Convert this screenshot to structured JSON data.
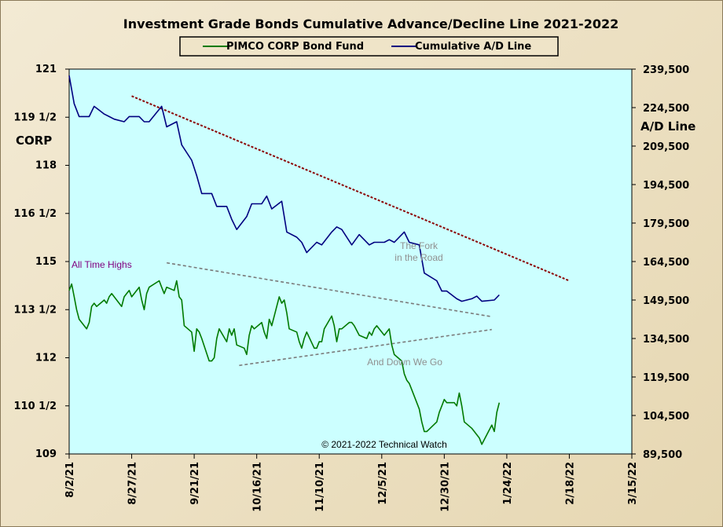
{
  "chart_data": {
    "type": "line",
    "title": "Investment Grade Bonds Cumulative Advance/Decline Line 2021-2022",
    "ylabel_left": "CORP",
    "ylabel_right": "A/D Line",
    "copyright": "© 2021-2022  Technical  Watch",
    "x_ticks": [
      "8/2/21",
      "8/27/21",
      "9/21/21",
      "10/16/21",
      "11/10/21",
      "12/5/21",
      "12/30/21",
      "1/24/22",
      "2/18/22",
      "3/15/22"
    ],
    "xlim": [
      "8/2/21",
      "3/15/22"
    ],
    "y_left_ticks": [
      "121",
      "119 1/2",
      "118",
      "116 1/2",
      "115",
      "113 1/2",
      "112",
      "110 1/2",
      "109"
    ],
    "y_left_lim": [
      109,
      121
    ],
    "y_right_ticks": [
      "239,500",
      "224,500",
      "209,500",
      "194,500",
      "179,500",
      "164,500",
      "149,500",
      "134,500",
      "119,500",
      "104,500",
      "89,500"
    ],
    "y_right_lim": [
      89500,
      239500
    ],
    "legend": [
      "PIMCO CORP Bond Fund",
      "Cumulative A/D Line"
    ],
    "colors": {
      "corp": "#007a00",
      "ad": "#000080",
      "resistance": "#8b0000",
      "channel": "#7a7a7a",
      "plot_bg": "#ccffff"
    },
    "annotations": {
      "all_time_highs": "All Time Highs",
      "fork_line1": "The  Fork",
      "fork_line2": "in the Road",
      "down_we_go": "And Down  We Go"
    },
    "series": [
      {
        "name": "PIMCO CORP Bond Fund",
        "axis": "left",
        "x": [
          "8/2/21",
          "8/3/21",
          "8/4/21",
          "8/5/21",
          "8/6/21",
          "8/9/21",
          "8/10/21",
          "8/11/21",
          "8/12/21",
          "8/13/21",
          "8/16/21",
          "8/17/21",
          "8/18/21",
          "8/19/21",
          "8/20/21",
          "8/23/21",
          "8/24/21",
          "8/25/21",
          "8/26/21",
          "8/27/21",
          "8/30/21",
          "8/31/21",
          "9/1/21",
          "9/2/21",
          "9/3/21",
          "9/7/21",
          "9/8/21",
          "9/9/21",
          "9/10/21",
          "9/13/21",
          "9/14/21",
          "9/15/21",
          "9/16/21",
          "9/17/21",
          "9/20/21",
          "9/21/21",
          "9/22/21",
          "9/23/21",
          "9/24/21",
          "9/27/21",
          "9/28/21",
          "9/29/21",
          "9/30/21",
          "10/1/21",
          "10/4/21",
          "10/5/21",
          "10/6/21",
          "10/7/21",
          "10/8/21",
          "10/11/21",
          "10/12/21",
          "10/13/21",
          "10/14/21",
          "10/15/21",
          "10/18/21",
          "10/19/21",
          "10/20/21",
          "10/21/21",
          "10/22/21",
          "10/25/21",
          "10/26/21",
          "10/27/21",
          "10/28/21",
          "10/29/21",
          "11/1/21",
          "11/2/21",
          "11/3/21",
          "11/4/21",
          "11/5/21",
          "11/8/21",
          "11/9/21",
          "11/10/21",
          "11/11/21",
          "11/12/21",
          "11/15/21",
          "11/16/21",
          "11/17/21",
          "11/18/21",
          "11/19/21",
          "11/22/21",
          "11/23/21",
          "11/24/21",
          "11/26/21",
          "11/29/21",
          "11/30/21",
          "12/1/21",
          "12/2/21",
          "12/3/21",
          "12/6/21",
          "12/7/21",
          "12/8/21",
          "12/9/21",
          "12/10/21",
          "12/13/21",
          "12/14/21",
          "12/15/21",
          "12/16/21",
          "12/17/21",
          "12/20/21",
          "12/21/21",
          "12/22/21",
          "12/23/21",
          "12/27/21",
          "12/28/21",
          "12/29/21",
          "12/30/21",
          "12/31/21",
          "1/3/22",
          "1/4/22",
          "1/5/22",
          "1/6/22",
          "1/7/22",
          "1/10/22",
          "1/11/22",
          "1/12/22",
          "1/13/22",
          "1/14/22",
          "1/18/22",
          "1/19/22",
          "1/20/22",
          "1/21/22"
        ],
        "values": [
          114.1,
          114.3,
          113.9,
          113.5,
          113.2,
          112.9,
          113.1,
          113.6,
          113.7,
          113.6,
          113.8,
          113.7,
          113.9,
          114.0,
          113.9,
          113.6,
          113.9,
          114.0,
          114.1,
          113.9,
          114.2,
          113.8,
          113.5,
          114.0,
          114.2,
          114.4,
          114.2,
          114.0,
          114.2,
          114.1,
          114.4,
          113.9,
          113.8,
          113.0,
          112.8,
          112.2,
          112.9,
          112.8,
          112.6,
          111.9,
          111.9,
          112.0,
          112.6,
          112.9,
          112.5,
          112.9,
          112.7,
          112.9,
          112.4,
          112.3,
          112.1,
          112.7,
          113.0,
          112.9,
          113.1,
          112.8,
          112.6,
          113.2,
          113.0,
          113.9,
          113.7,
          113.8,
          113.4,
          112.9,
          112.8,
          112.5,
          112.3,
          112.6,
          112.8,
          112.3,
          112.3,
          112.5,
          112.5,
          112.9,
          113.3,
          113.0,
          112.5,
          112.9,
          112.9,
          113.1,
          113.1,
          113.0,
          112.7,
          112.6,
          112.8,
          112.7,
          112.9,
          113.0,
          112.7,
          112.8,
          112.9,
          112.4,
          112.1,
          111.9,
          111.5,
          111.3,
          111.2,
          111.0,
          110.4,
          110.0,
          109.7,
          109.7,
          110.0,
          110.3,
          110.5,
          110.7,
          110.6,
          110.6,
          110.5,
          110.9,
          110.5,
          110.0,
          109.8,
          109.7,
          109.6,
          109.5,
          109.3,
          109.9,
          109.7,
          110.3,
          110.6
        ],
        "note": "approximate daily closes read from the chart"
      },
      {
        "name": "Cumulative A/D Line",
        "axis": "right",
        "x": [
          "8/2/21",
          "8/4/21",
          "8/6/21",
          "8/10/21",
          "8/12/21",
          "8/16/21",
          "8/18/21",
          "8/20/21",
          "8/24/21",
          "8/26/21",
          "8/30/21",
          "9/1/21",
          "9/3/21",
          "9/8/21",
          "9/10/21",
          "9/14/21",
          "9/16/21",
          "9/20/21",
          "9/22/21",
          "9/24/21",
          "9/28/21",
          "9/30/21",
          "10/4/21",
          "10/6/21",
          "10/8/21",
          "10/12/21",
          "10/14/21",
          "10/18/21",
          "10/20/21",
          "10/22/21",
          "10/26/21",
          "10/28/21",
          "11/1/21",
          "11/3/21",
          "11/5/21",
          "11/9/21",
          "11/11/21",
          "11/15/21",
          "11/17/21",
          "11/19/21",
          "11/23/21",
          "11/26/21",
          "11/30/21",
          "12/2/21",
          "12/6/21",
          "12/8/21",
          "12/10/21",
          "12/14/21",
          "12/16/21",
          "12/20/21",
          "12/22/21",
          "12/27/21",
          "12/29/21",
          "12/31/21",
          "1/4/22",
          "1/6/22",
          "1/10/22",
          "1/12/22",
          "1/14/22",
          "1/19/22",
          "1/21/22"
        ],
        "values": [
          237000,
          226000,
          221000,
          221000,
          225000,
          222000,
          221000,
          220000,
          219000,
          221000,
          221000,
          219000,
          219000,
          225000,
          217000,
          219000,
          210000,
          204000,
          198000,
          191000,
          191000,
          186000,
          186000,
          181000,
          177000,
          182000,
          187000,
          187000,
          190000,
          185000,
          188000,
          176000,
          174000,
          172000,
          168000,
          172000,
          171000,
          176000,
          178000,
          177000,
          171000,
          175000,
          171000,
          172000,
          172000,
          173000,
          172000,
          176000,
          172000,
          171000,
          160000,
          157000,
          153000,
          153000,
          150000,
          149000,
          150000,
          151000,
          149000,
          149500,
          151500
        ],
        "note": "approximate weekly-sampled values read from the chart"
      }
    ],
    "trendlines": [
      {
        "name": "resistance",
        "from": [
          "8/27/21",
          229000
        ],
        "to": [
          "2/18/22",
          157000
        ]
      },
      {
        "name": "upper-channel",
        "from": [
          "9/10/21",
          164000
        ],
        "to": [
          "1/18/22",
          143000
        ]
      },
      {
        "name": "lower-channel",
        "from": [
          "10/9/21",
          124000
        ],
        "to": [
          "1/18/22",
          138000
        ]
      }
    ]
  }
}
